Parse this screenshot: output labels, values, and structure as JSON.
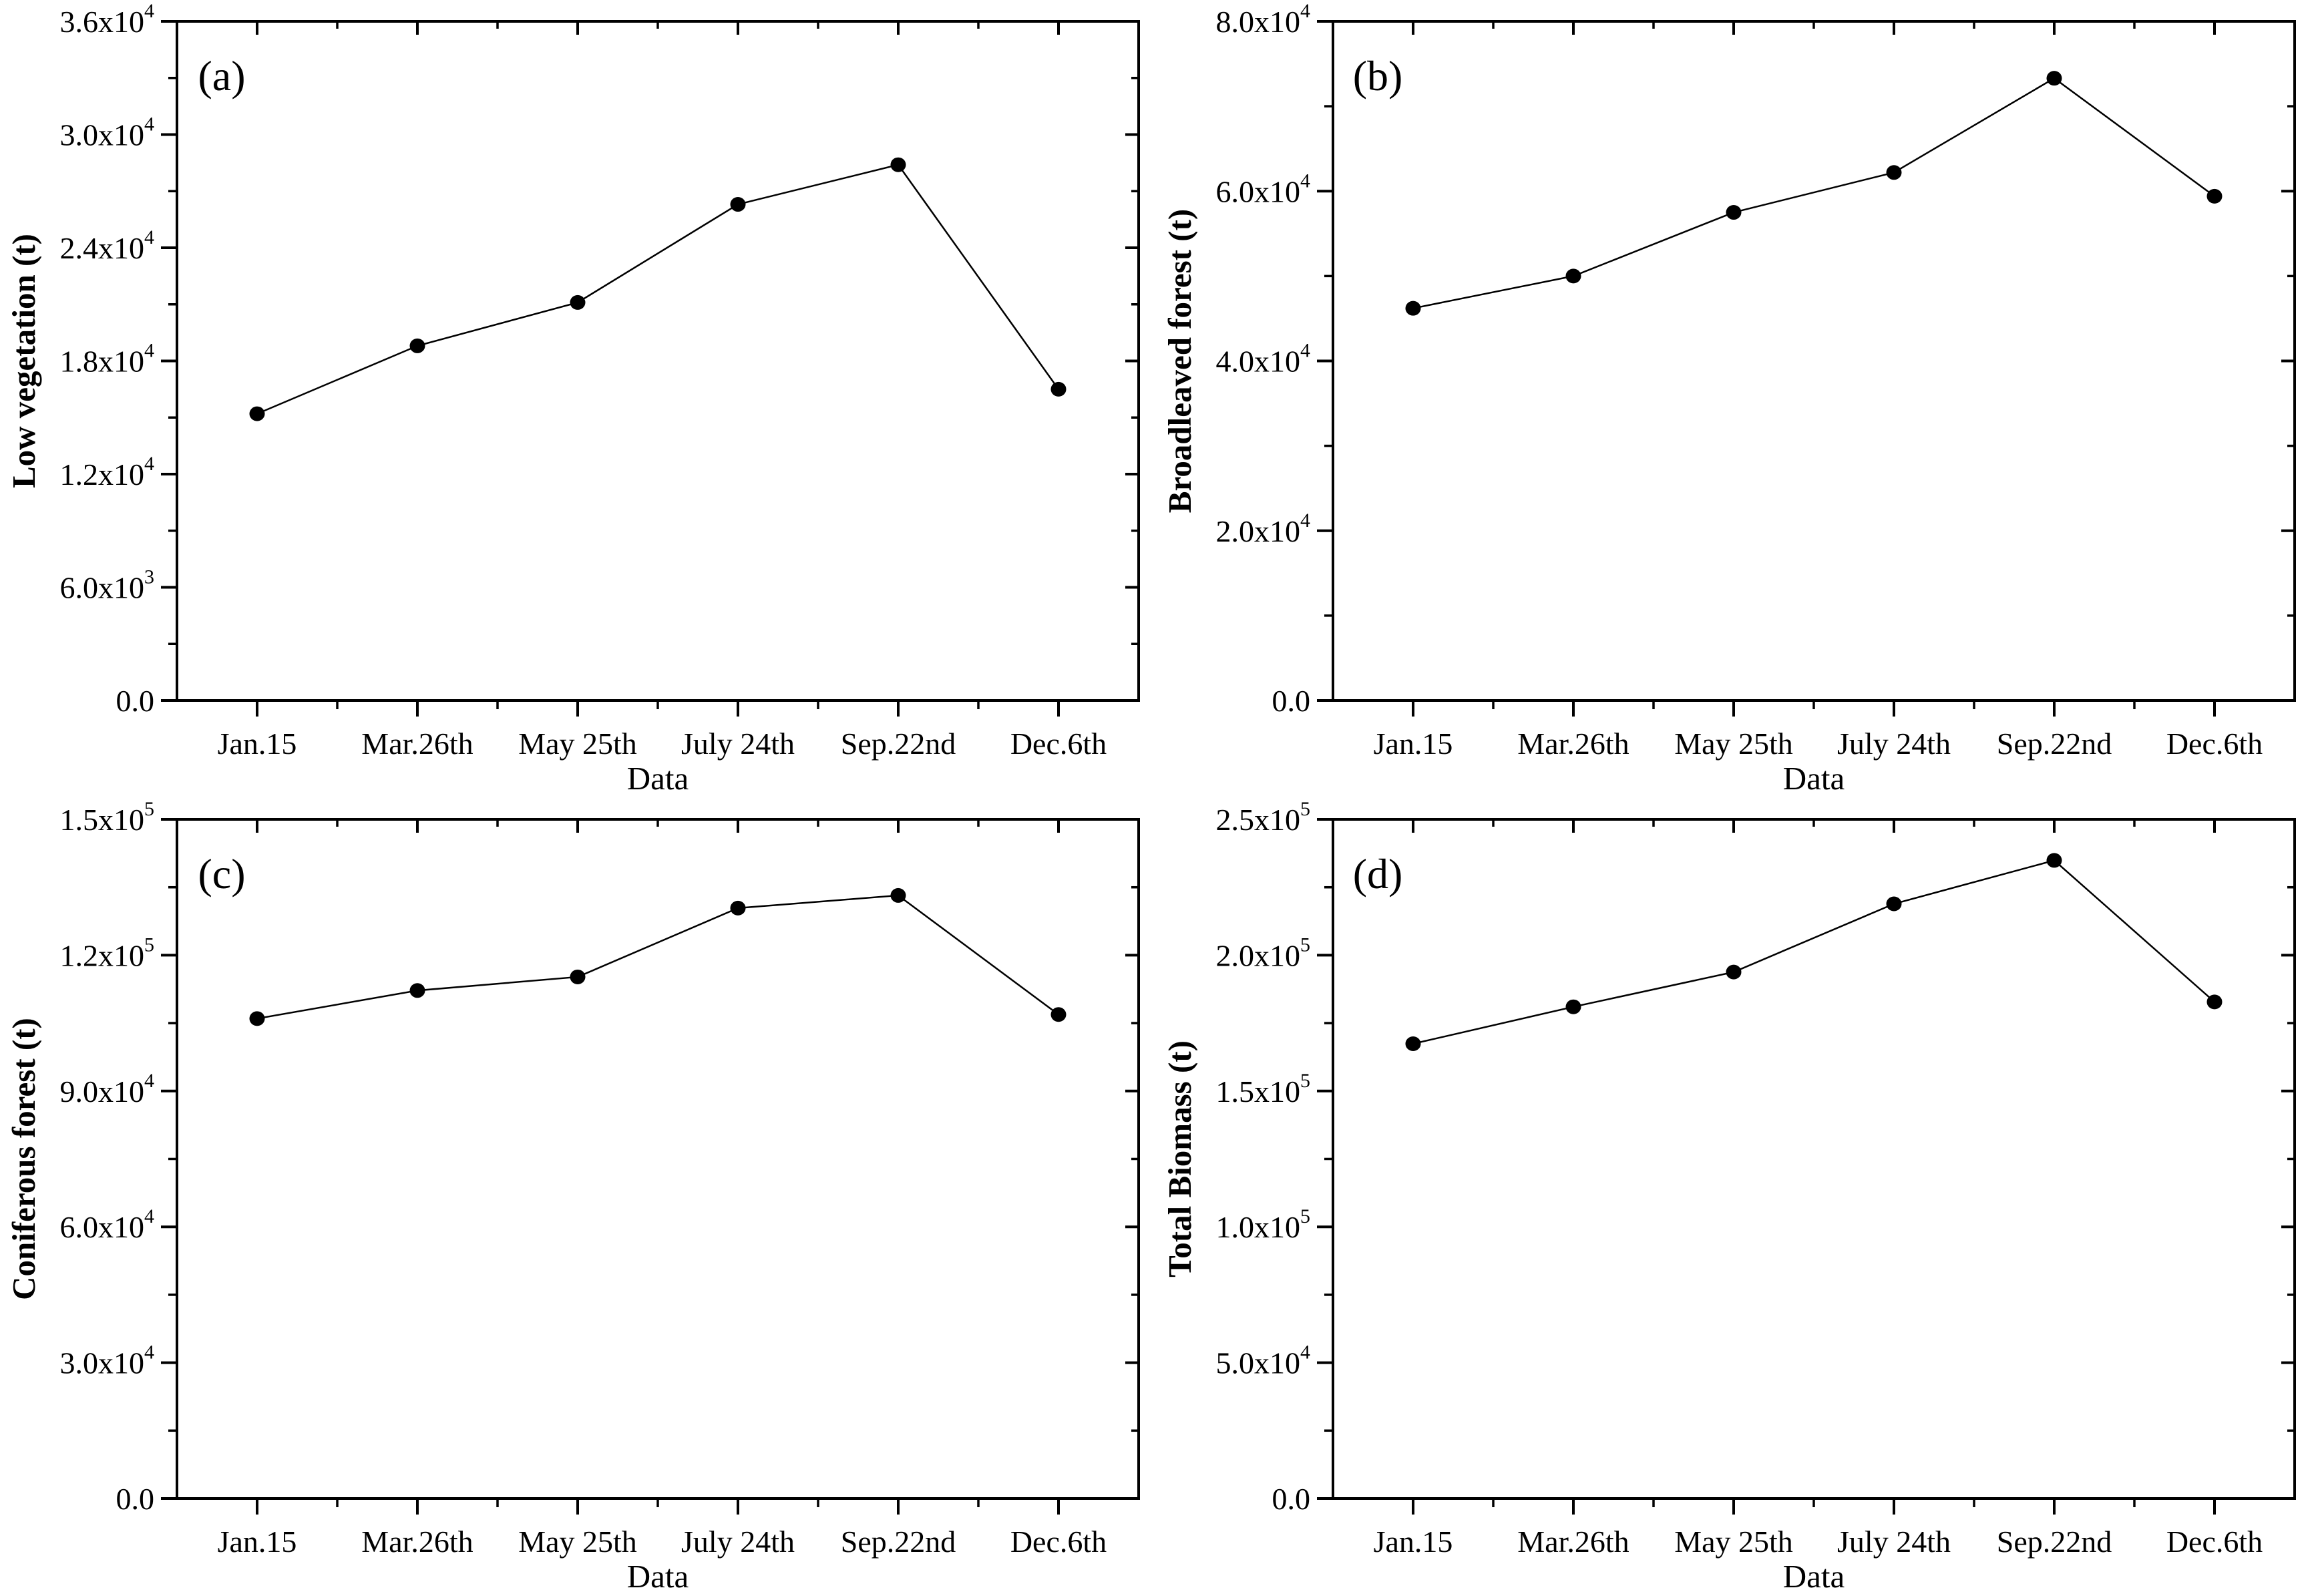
{
  "figure": {
    "background": "#ffffff",
    "ink_color": "#000000",
    "line_color": "#000000",
    "marker_color": "#000000",
    "marker_shape": "filled-circle",
    "layout": "2x2-grid",
    "grid_lines": false,
    "legend": null
  },
  "x_axis": {
    "label": "Data",
    "categories": [
      "Jan.15",
      "Mar.26th",
      "May 25th",
      "July 24th",
      "Sep.22nd",
      "Dec.6th"
    ]
  },
  "chart_data": [
    {
      "type": "line",
      "panel_label": "(a)",
      "ylabel": "Low vegetation (t)",
      "xlabel": "Data",
      "categories": [
        "Jan.15",
        "Mar.26th",
        "May 25th",
        "July 24th",
        "Sep.22nd",
        "Dec.6th"
      ],
      "values": [
        15200,
        18800,
        21100,
        26300,
        28400,
        16500
      ],
      "ylim": [
        0,
        36000
      ],
      "ytick_values": [
        0,
        6000,
        12000,
        18000,
        24000,
        30000,
        36000
      ],
      "ytick_labels": [
        {
          "base": "0.0",
          "exp": ""
        },
        {
          "base": "6.0x10",
          "exp": "3"
        },
        {
          "base": "1.2x10",
          "exp": "4"
        },
        {
          "base": "1.8x10",
          "exp": "4"
        },
        {
          "base": "2.4x10",
          "exp": "4"
        },
        {
          "base": "3.0x10",
          "exp": "4"
        },
        {
          "base": "3.6x10",
          "exp": "4"
        }
      ]
    },
    {
      "type": "line",
      "panel_label": "(b)",
      "ylabel": "Broadleaved forest (t)",
      "xlabel": "Data",
      "categories": [
        "Jan.15",
        "Mar.26th",
        "May 25th",
        "July 24th",
        "Sep.22nd",
        "Dec.6th"
      ],
      "values": [
        46200,
        50000,
        57500,
        62200,
        73300,
        59400
      ],
      "ylim": [
        0,
        80000
      ],
      "ytick_values": [
        0,
        20000,
        40000,
        60000,
        80000
      ],
      "ytick_labels": [
        {
          "base": "0.0",
          "exp": ""
        },
        {
          "base": "2.0x10",
          "exp": "4"
        },
        {
          "base": "4.0x10",
          "exp": "4"
        },
        {
          "base": "6.0x10",
          "exp": "4"
        },
        {
          "base": "8.0x10",
          "exp": "4"
        }
      ]
    },
    {
      "type": "line",
      "panel_label": "(c)",
      "ylabel": "Coniferous forest (t)",
      "xlabel": "Data",
      "categories": [
        "Jan.15",
        "Mar.26th",
        "May 25th",
        "July 24th",
        "Sep.22nd",
        "Dec.6th"
      ],
      "values": [
        106000,
        112200,
        115200,
        130400,
        133200,
        106900
      ],
      "ylim": [
        0,
        150000
      ],
      "ytick_values": [
        0,
        30000,
        60000,
        90000,
        120000,
        150000
      ],
      "ytick_labels": [
        {
          "base": "0.0",
          "exp": ""
        },
        {
          "base": "3.0x10",
          "exp": "4"
        },
        {
          "base": "6.0x10",
          "exp": "4"
        },
        {
          "base": "9.0x10",
          "exp": "4"
        },
        {
          "base": "1.2x10",
          "exp": "5"
        },
        {
          "base": "1.5x10",
          "exp": "5"
        }
      ]
    },
    {
      "type": "line",
      "panel_label": "(d)",
      "ylabel": "Total Biomass (t)",
      "xlabel": "Data",
      "categories": [
        "Jan.15",
        "Mar.26th",
        "May 25th",
        "July 24th",
        "Sep.22nd",
        "Dec.6th"
      ],
      "values": [
        167400,
        181000,
        193800,
        218900,
        234900,
        182800
      ],
      "ylim": [
        0,
        250000
      ],
      "ytick_values": [
        0,
        50000,
        100000,
        150000,
        200000,
        250000
      ],
      "ytick_labels": [
        {
          "base": "0.0",
          "exp": ""
        },
        {
          "base": "5.0x10",
          "exp": "4"
        },
        {
          "base": "1.0x10",
          "exp": "5"
        },
        {
          "base": "1.5x10",
          "exp": "5"
        },
        {
          "base": "2.0x10",
          "exp": "5"
        },
        {
          "base": "2.5x10",
          "exp": "5"
        }
      ]
    }
  ]
}
